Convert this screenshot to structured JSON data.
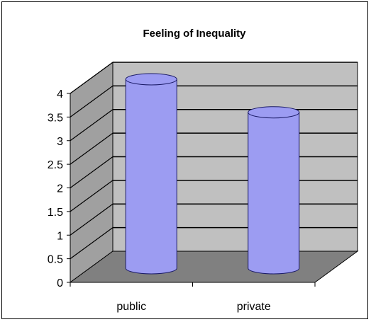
{
  "chart_data": {
    "type": "bar",
    "style": "3d-cylinder",
    "title": "Feeling of Inequality",
    "xlabel": "",
    "ylabel": "",
    "categories": [
      "public",
      "private"
    ],
    "values": [
      4.0,
      3.3
    ],
    "ylim": [
      0,
      4
    ],
    "yticks": [
      "0",
      "0.5",
      "1",
      "1.5",
      "2",
      "2.5",
      "3",
      "3.5",
      "4"
    ],
    "grid": true,
    "legend": "none",
    "colors": {
      "bar_fill": "#9c9cf2",
      "bar_stroke": "#1a1a66",
      "back_wall": "#c0c0c0",
      "side_wall": "#a0a0a0",
      "floor": "#808080",
      "gridline": "#000000"
    }
  }
}
